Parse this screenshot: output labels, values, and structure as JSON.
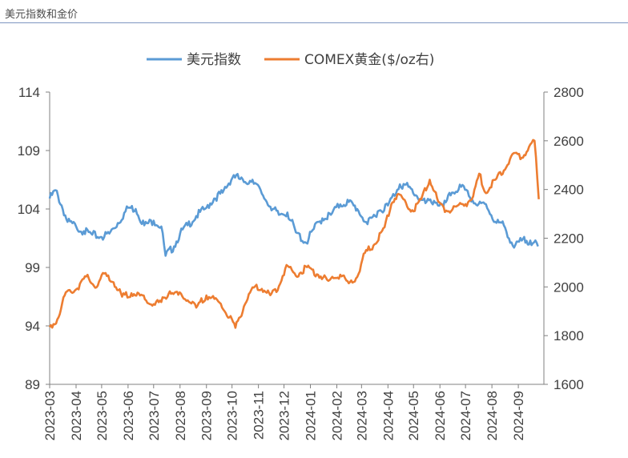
{
  "page_caption": "美元指数和金价",
  "chart_data": {
    "type": "line",
    "series": [
      {
        "name": "美元指数",
        "axis": "left",
        "color": "#5b9bd5",
        "points": [
          [
            "2023-03-01",
            104.9
          ],
          [
            "2023-03-08",
            105.6
          ],
          [
            "2023-03-15",
            104.3
          ],
          [
            "2023-03-22",
            102.9
          ],
          [
            "2023-04-01",
            102.5
          ],
          [
            "2023-04-10",
            102.1
          ],
          [
            "2023-04-20",
            101.8
          ],
          [
            "2023-05-01",
            101.6
          ],
          [
            "2023-05-10",
            101.9
          ],
          [
            "2023-05-20",
            102.8
          ],
          [
            "2023-06-01",
            104.1
          ],
          [
            "2023-06-10",
            104.0
          ],
          [
            "2023-06-20",
            102.6
          ],
          [
            "2023-07-01",
            103.0
          ],
          [
            "2023-07-10",
            102.5
          ],
          [
            "2023-07-15",
            100.0
          ],
          [
            "2023-07-25",
            100.8
          ],
          [
            "2023-08-01",
            101.9
          ],
          [
            "2023-08-10",
            102.6
          ],
          [
            "2023-08-20",
            103.4
          ],
          [
            "2023-09-01",
            104.1
          ],
          [
            "2023-09-10",
            104.9
          ],
          [
            "2023-09-20",
            105.4
          ],
          [
            "2023-10-03",
            106.9
          ],
          [
            "2023-10-15",
            106.3
          ],
          [
            "2023-10-25",
            106.5
          ],
          [
            "2023-11-05",
            105.3
          ],
          [
            "2023-11-15",
            104.2
          ],
          [
            "2023-11-25",
            103.5
          ],
          [
            "2023-12-05",
            103.7
          ],
          [
            "2023-12-15",
            102.0
          ],
          [
            "2023-12-27",
            101.1
          ],
          [
            "2024-01-05",
            102.3
          ],
          [
            "2024-01-15",
            103.2
          ],
          [
            "2024-01-25",
            103.5
          ],
          [
            "2024-02-05",
            104.4
          ],
          [
            "2024-02-15",
            104.6
          ],
          [
            "2024-02-25",
            104.0
          ],
          [
            "2024-03-08",
            102.7
          ],
          [
            "2024-03-20",
            103.8
          ],
          [
            "2024-04-01",
            104.3
          ],
          [
            "2024-04-15",
            106.1
          ],
          [
            "2024-04-25",
            105.9
          ],
          [
            "2024-05-05",
            105.1
          ],
          [
            "2024-05-15",
            104.5
          ],
          [
            "2024-05-25",
            104.7
          ],
          [
            "2024-06-05",
            104.2
          ],
          [
            "2024-06-15",
            105.4
          ],
          [
            "2024-06-26",
            105.9
          ],
          [
            "2024-07-05",
            105.1
          ],
          [
            "2024-07-15",
            104.3
          ],
          [
            "2024-07-25",
            104.4
          ],
          [
            "2024-08-05",
            102.9
          ],
          [
            "2024-08-15",
            102.6
          ],
          [
            "2024-08-27",
            100.7
          ],
          [
            "2024-09-05",
            101.3
          ],
          [
            "2024-09-15",
            101.3
          ],
          [
            "2024-09-24",
            100.8
          ]
        ]
      },
      {
        "name": "COMEX黄金($/oz右)",
        "axis": "right",
        "color": "#ed7d31",
        "points": [
          [
            "2023-03-01",
            1835
          ],
          [
            "2023-03-10",
            1867
          ],
          [
            "2023-03-20",
            1978
          ],
          [
            "2023-04-01",
            1990
          ],
          [
            "2023-04-13",
            2043
          ],
          [
            "2023-04-25",
            1998
          ],
          [
            "2023-05-04",
            2055
          ],
          [
            "2023-05-15",
            2019
          ],
          [
            "2023-05-25",
            1960
          ],
          [
            "2023-06-05",
            1974
          ],
          [
            "2023-06-15",
            1965
          ],
          [
            "2023-06-28",
            1928
          ],
          [
            "2023-07-10",
            1938
          ],
          [
            "2023-07-20",
            1982
          ],
          [
            "2023-07-30",
            1968
          ],
          [
            "2023-08-10",
            1945
          ],
          [
            "2023-08-20",
            1915
          ],
          [
            "2023-09-01",
            1965
          ],
          [
            "2023-09-15",
            1940
          ],
          [
            "2023-09-28",
            1875
          ],
          [
            "2023-10-05",
            1832
          ],
          [
            "2023-10-15",
            1920
          ],
          [
            "2023-10-25",
            1998
          ],
          [
            "2023-11-05",
            1992
          ],
          [
            "2023-11-15",
            1966
          ],
          [
            "2023-11-25",
            2003
          ],
          [
            "2023-12-04",
            2090
          ],
          [
            "2023-12-15",
            2045
          ],
          [
            "2023-12-28",
            2081
          ],
          [
            "2024-01-10",
            2050
          ],
          [
            "2024-01-22",
            2025
          ],
          [
            "2024-02-05",
            2050
          ],
          [
            "2024-02-15",
            2015
          ],
          [
            "2024-02-25",
            2041
          ],
          [
            "2024-03-05",
            2140
          ],
          [
            "2024-03-15",
            2170
          ],
          [
            "2024-03-28",
            2245
          ],
          [
            "2024-04-05",
            2340
          ],
          [
            "2024-04-12",
            2380
          ],
          [
            "2024-04-22",
            2346
          ],
          [
            "2024-05-01",
            2310
          ],
          [
            "2024-05-10",
            2360
          ],
          [
            "2024-05-20",
            2440
          ],
          [
            "2024-05-30",
            2350
          ],
          [
            "2024-06-10",
            2310
          ],
          [
            "2024-06-20",
            2330
          ],
          [
            "2024-07-01",
            2340
          ],
          [
            "2024-07-10",
            2372
          ],
          [
            "2024-07-17",
            2465
          ],
          [
            "2024-07-25",
            2385
          ],
          [
            "2024-08-05",
            2440
          ],
          [
            "2024-08-15",
            2478
          ],
          [
            "2024-08-25",
            2545
          ],
          [
            "2024-09-05",
            2530
          ],
          [
            "2024-09-15",
            2585
          ],
          [
            "2024-09-20",
            2600
          ],
          [
            "2024-09-25",
            2360
          ]
        ]
      }
    ],
    "x_tick_labels": [
      "2023-03",
      "2023-04",
      "2023-05",
      "2023-06",
      "2023-07",
      "2023-08",
      "2023-09",
      "2023-10",
      "2023-11",
      "2023-12",
      "2024-01",
      "2024-02",
      "2024-03",
      "2024-04",
      "2024-05",
      "2024-06",
      "2024-07",
      "2024-08",
      "2024-09"
    ],
    "y_left": {
      "ylim": [
        89,
        114
      ],
      "ticks": [
        "89",
        "94",
        "99",
        "104",
        "109",
        "114"
      ]
    },
    "y_right": {
      "ylim": [
        1600,
        2800
      ],
      "ticks": [
        "1600",
        "1800",
        "2000",
        "2200",
        "2400",
        "2600",
        "2800"
      ]
    },
    "legend_placement": "top",
    "grid": false
  }
}
